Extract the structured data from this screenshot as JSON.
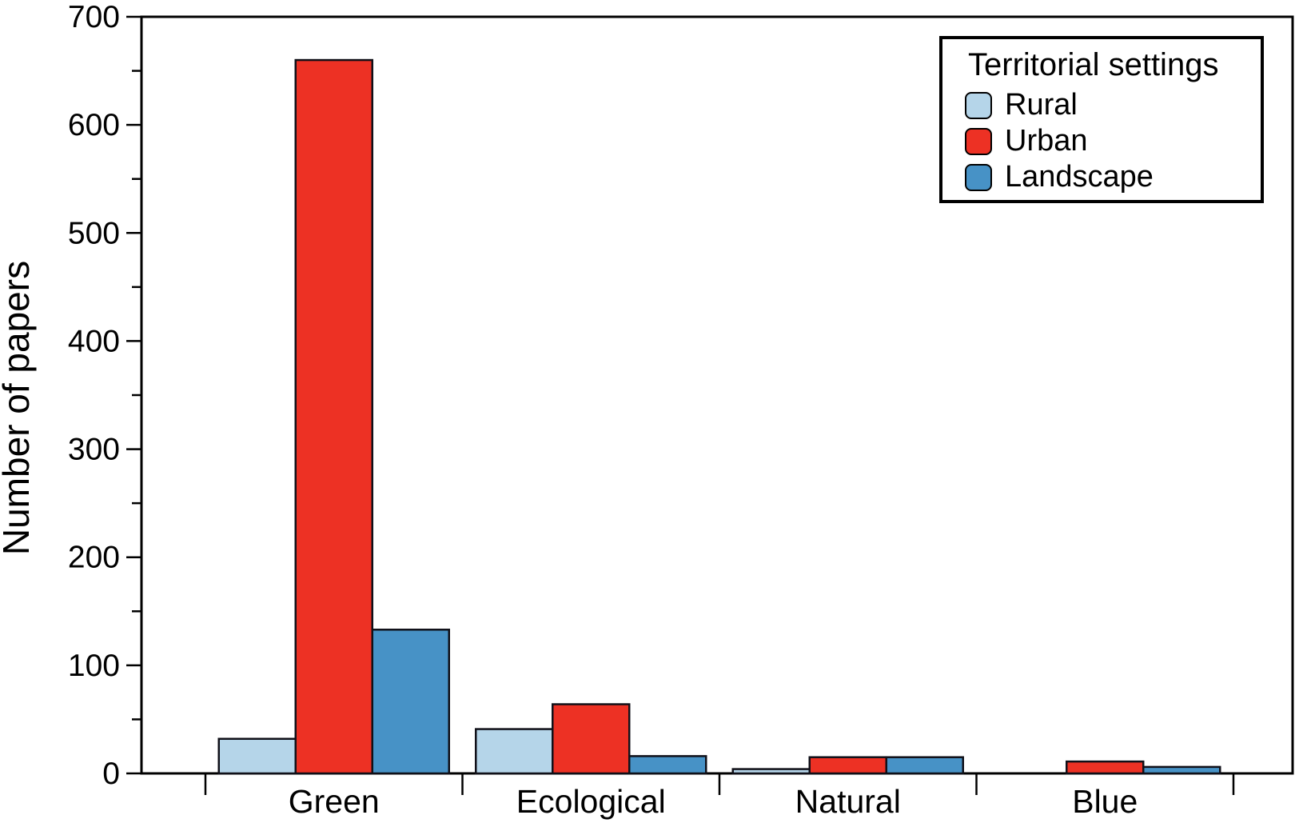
{
  "figure": {
    "background": "#ffffff",
    "frame_color": "#000000",
    "bar_border_color": "#101018"
  },
  "chart_data": {
    "type": "bar",
    "title": "",
    "xlabel": "",
    "ylabel": "Number of papers",
    "ylim": [
      0,
      700
    ],
    "y_major_step": 100,
    "y_minor_step": 50,
    "yticks": [
      0,
      100,
      200,
      300,
      400,
      500,
      600,
      700
    ],
    "grid": false,
    "categories": [
      "Green",
      "Ecological",
      "Natural",
      "Blue"
    ],
    "series": [
      {
        "name": "Rural",
        "color": "#B5D5E9",
        "values": [
          32,
          41,
          4,
          0
        ]
      },
      {
        "name": "Urban",
        "color": "#ED3124",
        "values": [
          660,
          64,
          15,
          11
        ]
      },
      {
        "name": "Landscape",
        "color": "#4792C6",
        "values": [
          133,
          16,
          15,
          6
        ]
      }
    ],
    "legend_title": "Territorial settings",
    "legend_position": "top-right"
  }
}
